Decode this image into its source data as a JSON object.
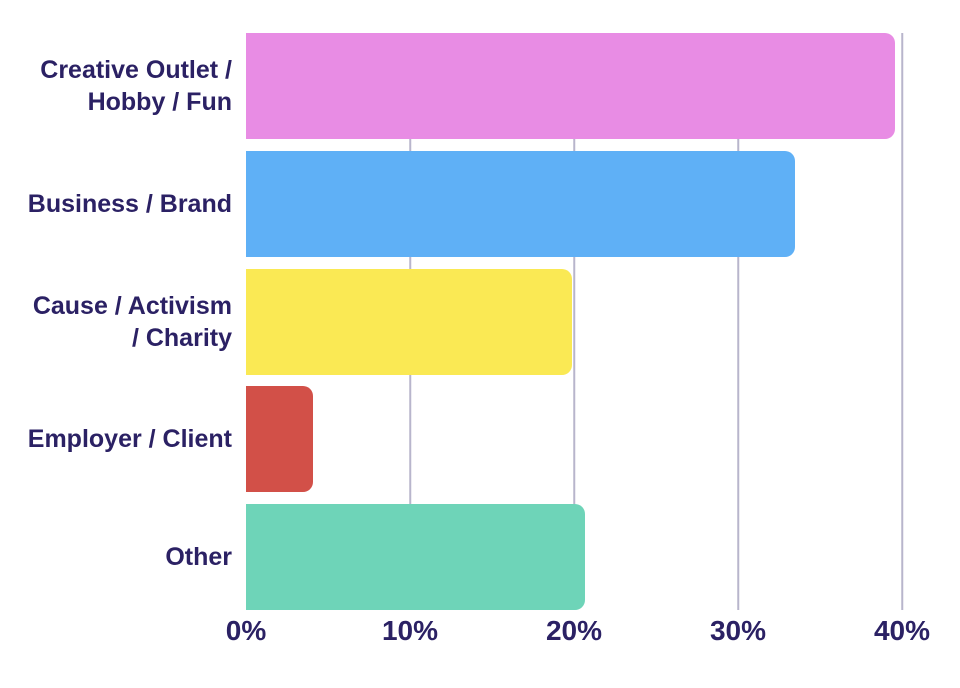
{
  "chart_data": {
    "type": "bar",
    "orientation": "horizontal",
    "title": "",
    "xlabel": "",
    "ylabel": "",
    "categories": [
      "Creative Outlet / Hobby / Fun",
      "Business / Brand",
      "Cause / Activism / Charity",
      "Employer / Client",
      "Other"
    ],
    "display_labels": [
      "Creative Outlet /\nHobby / Fun",
      "Business / Brand",
      "Cause / Activism\n/ Charity",
      "Employer / Client",
      "Other"
    ],
    "values": [
      39.6,
      33.5,
      19.9,
      4.1,
      20.7
    ],
    "unit": "%",
    "axis_max": 40,
    "x_tick_values": [
      0,
      10,
      20,
      30,
      40
    ],
    "x_ticks": [
      "0%",
      "10%",
      "20%",
      "30%",
      "40%"
    ],
    "grid": "vertical gridlines at 10/20/30/40, no 0% line, no axis line",
    "legend": "none",
    "bar_colors": [
      "#e88ce4",
      "#5fb0f6",
      "#fae954",
      "#d25048",
      "#6ed4b8"
    ],
    "label_color": "#2b2164",
    "gridline_color": "#b8b5cc",
    "background": "#ffffff"
  }
}
